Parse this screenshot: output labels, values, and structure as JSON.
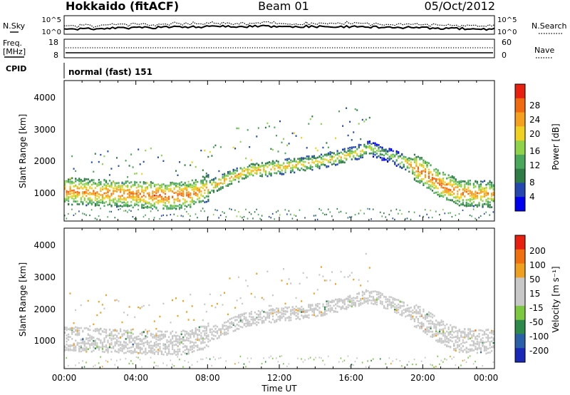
{
  "header": {
    "site": "Hokkaido (fitACF)",
    "beam": "Beam 01",
    "date": "05/Oct/2012"
  },
  "noise_panel": {
    "left_label": "N.Sky",
    "right_label": "N.Search",
    "left_ticks": [
      "10^5",
      "10^0"
    ],
    "right_ticks": [
      "10^5",
      "10^0"
    ]
  },
  "freq_panel": {
    "left_label_1": "Freq.",
    "left_label_2": "[MHz]",
    "left_ticks": [
      "18",
      "8"
    ],
    "right_label": "Nave",
    "right_ticks": [
      "60",
      "0"
    ]
  },
  "cpid_panel": {
    "label": "CPID",
    "mode": "normal (fast) 151"
  },
  "power_panel": {
    "ylabel": "Slant Range [km]",
    "yticks": [
      "4000",
      "3000",
      "2000",
      "1000"
    ],
    "colorbar_label": "Power [dB]",
    "colorbar_ticks": [
      "28",
      "24",
      "20",
      "16",
      "12",
      "8",
      "4"
    ],
    "colorbar_colors": [
      "#0000ee",
      "#2448b0",
      "#2e7d46",
      "#4aa85a",
      "#8fd34a",
      "#f0d020",
      "#f6a020",
      "#f26a10",
      "#e82010"
    ]
  },
  "velocity_panel": {
    "ylabel": "Slant Range [km]",
    "yticks": [
      "4000",
      "3000",
      "2000",
      "1000"
    ],
    "colorbar_label": "Velocity [m s⁻¹]",
    "colorbar_ticks": [
      "200",
      "100",
      "50",
      "15",
      "-15",
      "-50",
      "-100",
      "-200"
    ],
    "colorbar_colors": [
      "#1a28b8",
      "#2a60a8",
      "#2e8a4a",
      "#7cc840",
      "#c8c8c8",
      "#c8c8c8",
      "#f0a020",
      "#f07010",
      "#e82010"
    ]
  },
  "xaxis": {
    "label": "Time UT",
    "ticks": [
      "00:00",
      "04:00",
      "08:00",
      "12:00",
      "16:00",
      "20:00",
      "00:00"
    ]
  },
  "chart_data": {
    "type": "heatmap",
    "title": "Hokkaido (fitACF)",
    "xlabel": "Time UT",
    "ylabel": "Slant Range [km]",
    "xlim_hours": [
      0,
      24
    ],
    "ylim_km": [
      180,
      4600
    ],
    "power_scale_dB": [
      0,
      30
    ],
    "velocity_scale_ms": [
      -250,
      250
    ],
    "main_echo_band": {
      "time_hours": [
        0,
        2,
        4,
        6,
        7,
        8,
        9,
        10,
        12,
        14,
        16,
        17,
        18,
        19,
        20,
        21,
        22,
        24
      ],
      "center_km": [
        1150,
        1100,
        1050,
        1000,
        1050,
        1250,
        1500,
        1750,
        1900,
        2050,
        2300,
        2500,
        2300,
        2050,
        1750,
        1350,
        1100,
        1050
      ],
      "power_dB": [
        24,
        24,
        25,
        26,
        25,
        22,
        22,
        22,
        22,
        20,
        20,
        18,
        14,
        22,
        26,
        26,
        24,
        22
      ]
    }
  }
}
